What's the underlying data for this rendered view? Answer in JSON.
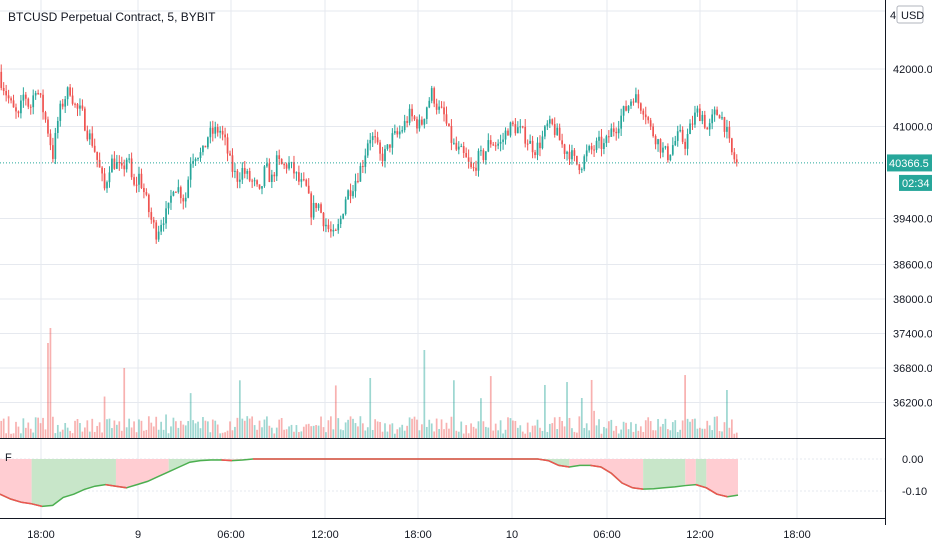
{
  "chart_data": {
    "type": "candlestick",
    "title": "BTCUSD Perpetual Contract, 5, BYBIT",
    "currency_button": "USD",
    "colors": {
      "up": "#26a69a",
      "down": "#ef5350",
      "grid": "#e6e9ef",
      "axis_text": "#131722",
      "price_line": "#26a69a",
      "osc_line_up": "#4caf50",
      "osc_line_down": "#ef5350",
      "osc_fill_up": "#c8e6c9",
      "osc_fill_down": "#ffcdd2"
    },
    "price_axis": {
      "ticks": [
        "42000.0",
        "41000.0",
        "39400.0",
        "38600.0",
        "38000.0",
        "37400.0",
        "36800.0",
        "36200.0"
      ],
      "tick_values": [
        42000,
        41000,
        39400,
        38600,
        38000,
        37400,
        36800,
        36200
      ],
      "partial_top_tick": "4",
      "last_price_label": "40366.5",
      "countdown_label": "02:34",
      "last_price": 40366.5
    },
    "time_axis": {
      "ticks": [
        "18:00",
        "9",
        "06:00",
        "12:00",
        "18:00",
        "10",
        "06:00",
        "12:00",
        "18:00"
      ]
    },
    "oscillator": {
      "name": "F",
      "ticks": [
        "0.00",
        "-0.10"
      ],
      "tick_values": [
        0.0,
        -0.1
      ],
      "values": [
        -0.11,
        -0.125,
        -0.135,
        -0.14,
        -0.148,
        -0.145,
        -0.12,
        -0.11,
        -0.095,
        -0.085,
        -0.08,
        -0.085,
        -0.09,
        -0.08,
        -0.07,
        -0.055,
        -0.04,
        -0.025,
        -0.01,
        -0.005,
        -0.003,
        -0.003,
        -0.005,
        -0.003,
        0.0,
        0.0,
        0.0,
        0.0,
        0.0,
        0.0,
        0.0,
        0.0,
        0.0,
        0.0,
        0.0,
        0.0,
        0.0,
        0.0,
        0.0,
        0.0,
        0.0,
        0.0,
        0.0,
        0.0,
        0.0,
        0.0,
        0.0,
        0.0,
        0.0,
        0.0,
        0.0,
        0.0,
        -0.005,
        -0.02,
        -0.025,
        -0.02,
        -0.02,
        -0.025,
        -0.045,
        -0.075,
        -0.09,
        -0.094,
        -0.093,
        -0.09,
        -0.087,
        -0.083,
        -0.08,
        -0.09,
        -0.11,
        -0.118,
        -0.113
      ],
      "fill_segments": [
        {
          "from": 0,
          "to": 3,
          "state": "down"
        },
        {
          "from": 3,
          "to": 11,
          "state": "up"
        },
        {
          "from": 11,
          "to": 16,
          "state": "down"
        },
        {
          "from": 16,
          "to": 21,
          "state": "up"
        },
        {
          "from": 21,
          "to": 24,
          "state": "down"
        },
        {
          "from": 24,
          "to": 51,
          "state": "neutral"
        },
        {
          "from": 51,
          "to": 54,
          "state": "up"
        },
        {
          "from": 54,
          "to": 61,
          "state": "down"
        },
        {
          "from": 61,
          "to": 65,
          "state": "up"
        },
        {
          "from": 65,
          "to": 66,
          "state": "down"
        },
        {
          "from": 66,
          "to": 67,
          "state": "up"
        },
        {
          "from": 67,
          "to": 70,
          "state": "down"
        }
      ]
    },
    "closes": [
      41800,
      41550,
      41300,
      41150,
      41600,
      41300,
      41700,
      41400,
      41000,
      40500,
      41200,
      41500,
      41650,
      41300,
      41250,
      40900,
      40700,
      40300,
      39900,
      40400,
      40350,
      40200,
      40500,
      39900,
      40150,
      39800,
      39400,
      39150,
      39400,
      39500,
      40000,
      39900,
      39700,
      40450,
      40550,
      40500,
      40850,
      40900,
      40950,
      40700,
      40300,
      40100,
      40250,
      40100,
      40000,
      39800,
      40300,
      40050,
      40400,
      40300,
      40350,
      40200,
      40000,
      39950,
      39500,
      39700,
      39400,
      39200,
      39050,
      39350,
      39800,
      39950,
      40150,
      40400,
      40850,
      40750,
      40450,
      40550,
      40800,
      40850,
      41000,
      41200,
      41100,
      41000,
      41350,
      41600,
      41300,
      41200,
      40850,
      40600,
      40550,
      40400,
      40200,
      40450,
      40500,
      40750,
      40700,
      40700,
      40950,
      41000,
      40950,
      40850,
      40700,
      40600,
      40750,
      41000,
      41000,
      40800,
      40600,
      40550,
      40350,
      40350,
      40550,
      40600,
      40700,
      40650,
      40900,
      41000,
      41200,
      41350,
      41550,
      41400,
      41300,
      40950,
      40800,
      40600,
      40500,
      40700,
      40850,
      40700,
      41000,
      41250,
      41200,
      40900,
      41200,
      41250,
      41000,
      40550,
      40350
    ]
  }
}
